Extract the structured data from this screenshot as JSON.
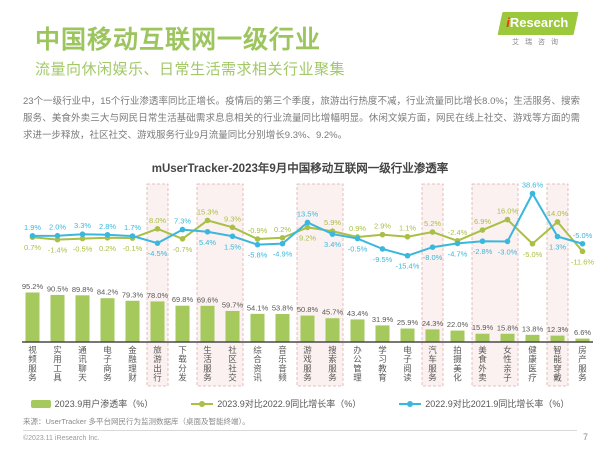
{
  "header": {
    "title": "中国移动互联网一级行业",
    "subtitle": "流量向休闲娱乐、日常生活需求相关行业聚集",
    "logo": {
      "brand_i": "i",
      "brand_rest": "Research",
      "brand_cn": "艾瑞咨询"
    }
  },
  "intro_text": "23个一级行业中，15个行业渗透率同比正增长。疫情后的第三个季度，旅游出行热度不减，行业流量同比增长8.0%；生活服务、搜索服务、美食外卖三大与网民日常生活基础需求息息相关的行业流量同比增幅明显。休闲文娱方面，网民在线上社交、游戏等方面的需求进一步释放，社区社交、游戏服务行业9月流量同比分别增长9.3%、9.2%。",
  "chart_data": {
    "type": "bar",
    "title": "mUserTracker-2023年9月中国移动互联网一级行业渗透率",
    "categories": [
      "视频服务",
      "实用工具",
      "通讯聊天",
      "电子商务",
      "金融理财",
      "旅游出行",
      "下载分发",
      "生活服务",
      "社区社交",
      "综合资讯",
      "音乐音频",
      "游戏服务",
      "搜索服务",
      "办公管理",
      "学习教育",
      "电子阅读",
      "汽车服务",
      "拍摄美化",
      "美食外卖",
      "女性亲子",
      "健康医疗",
      "智能穿戴",
      "房产服务"
    ],
    "series": [
      {
        "name": "2023.9用户渗透率（%）",
        "type": "bar",
        "color": "#a5c95c",
        "values": [
          95.2,
          90.5,
          89.8,
          84.2,
          79.3,
          78.0,
          69.8,
          69.6,
          59.7,
          54.1,
          53.8,
          50.8,
          45.7,
          43.4,
          31.9,
          25.9,
          24.3,
          22.0,
          15.9,
          15.8,
          13.8,
          12.3,
          6.6
        ]
      },
      {
        "name": "2023.9对比2022.9同比增长率（%）",
        "type": "line",
        "color": "#a9bf45",
        "values": [
          0.7,
          -1.4,
          -0.5,
          0.2,
          -0.1,
          8.0,
          -0.7,
          15.3,
          9.3,
          -0.9,
          0.2,
          9.2,
          5.9,
          0.9,
          2.9,
          1.1,
          5.2,
          -2.4,
          6.9,
          16.0,
          -5.0,
          14.0,
          -11.6
        ]
      },
      {
        "name": "2022.9对比2021.9同比增长率（%）",
        "type": "line",
        "color": "#3ab7dd",
        "values": [
          1.9,
          2.0,
          3.3,
          2.8,
          1.7,
          -4.5,
          7.3,
          5.4,
          1.5,
          -5.8,
          -4.9,
          13.5,
          3.4,
          -0.5,
          -9.5,
          -15.4,
          -8.0,
          -4.7,
          -2.8,
          -3.0,
          38.6,
          1.3,
          -5.0
        ]
      }
    ],
    "highlighted_groups": [
      [
        5,
        5
      ],
      [
        7,
        8
      ],
      [
        11,
        12
      ],
      [
        16,
        16
      ],
      [
        18,
        19
      ],
      [
        21,
        21
      ]
    ],
    "highlight_color": "#dfaeab",
    "highlight_fill": "#fbf1f0",
    "bar_ylim": [
      0,
      100
    ],
    "line_range": [
      -20,
      40
    ],
    "grid": false,
    "legend_position": "bottom",
    "label_color": "#595757"
  },
  "footer": {
    "source": "来源：UserTracker 多平台网民行为监测数据库（桌面及智能终端）。",
    "copyright": "©2023.11 iResearch Inc.",
    "page": "7"
  }
}
